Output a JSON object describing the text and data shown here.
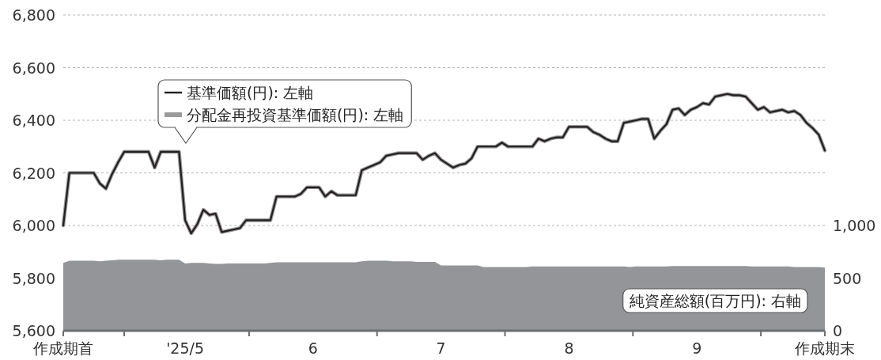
{
  "chart_data": {
    "type": "line",
    "ylim": [
      5600,
      6800
    ],
    "y2lim": [
      0,
      3000
    ],
    "categories": [
      "作成期首",
      null,
      null,
      null,
      null,
      null,
      null,
      null,
      null,
      null,
      null,
      null,
      null,
      null,
      null,
      null,
      null,
      null,
      null,
      null,
      "'25/5",
      null,
      null,
      null,
      null,
      null,
      null,
      null,
      null,
      null,
      null,
      null,
      null,
      null,
      null,
      null,
      null,
      null,
      null,
      null,
      null,
      "6",
      null,
      null,
      null,
      null,
      null,
      null,
      null,
      null,
      null,
      null,
      null,
      null,
      null,
      null,
      null,
      null,
      null,
      null,
      null,
      null,
      "7",
      null,
      null,
      null,
      null,
      null,
      null,
      null,
      null,
      null,
      null,
      null,
      null,
      null,
      null,
      null,
      null,
      null,
      null,
      null,
      null,
      "8",
      null,
      null,
      null,
      null,
      null,
      null,
      null,
      null,
      null,
      null,
      null,
      null,
      null,
      null,
      null,
      null,
      null,
      null,
      null,
      null,
      "9",
      null,
      null,
      null,
      null,
      null,
      null,
      null,
      null,
      null,
      null,
      null,
      null,
      null,
      null,
      null,
      null,
      null,
      null,
      null,
      null,
      "作成期末"
    ],
    "yticks": [
      {
        "value": 5600,
        "label": "5,600"
      },
      {
        "value": 5800,
        "label": "5,800"
      },
      {
        "value": 6000,
        "label": "6,000"
      },
      {
        "value": 6200,
        "label": "6,200"
      },
      {
        "value": 6400,
        "label": "6,400"
      },
      {
        "value": 6600,
        "label": "6,600"
      },
      {
        "value": 6800,
        "label": "6,800"
      }
    ],
    "y2ticks": [
      0,
      500,
      {
        "value": 1000,
        "label": "1,000"
      }
    ],
    "grid": "y",
    "legend": "top left",
    "marker": "none",
    "line_style": "solid",
    "series": [
      {
        "name": "純資産総額(百万円): 右軸",
        "type": "area",
        "axis": "y2",
        "color": "#939598",
        "values": [
          645,
          665,
          665,
          665,
          665,
          665,
          660,
          665,
          670,
          675,
          675,
          675,
          675,
          675,
          675,
          675,
          670,
          675,
          675,
          675,
          640,
          645,
          645,
          645,
          640,
          635,
          635,
          640,
          640,
          640,
          640,
          640,
          640,
          640,
          645,
          650,
          650,
          650,
          650,
          650,
          650,
          650,
          650,
          650,
          650,
          650,
          650,
          650,
          650,
          660,
          665,
          665,
          665,
          665,
          660,
          660,
          660,
          660,
          655,
          655,
          655,
          655,
          620,
          620,
          620,
          620,
          620,
          620,
          620,
          605,
          605,
          605,
          605,
          605,
          605,
          605,
          605,
          610,
          610,
          610,
          610,
          610,
          610,
          610,
          610,
          610,
          610,
          610,
          610,
          610,
          610,
          610,
          610,
          605,
          610,
          610,
          610,
          610,
          610,
          610,
          615,
          615,
          615,
          615,
          615,
          615,
          615,
          615,
          615,
          615,
          615,
          615,
          615,
          610,
          610,
          610,
          610,
          610,
          610,
          610,
          605,
          605,
          605,
          605,
          605,
          600
        ]
      },
      {
        "name": "分配金再投資基準価額(円): 左軸",
        "color": "#9a9a9a",
        "values": [
          6000,
          6200,
          6200,
          6200,
          6200,
          6200,
          6160,
          6140,
          6195,
          6240,
          6280,
          6280,
          6280,
          6280,
          6280,
          6220,
          6280,
          6280,
          6280,
          6280,
          6020,
          5970,
          6005,
          6060,
          6040,
          6045,
          5975,
          5980,
          5985,
          5990,
          6020,
          6020,
          6020,
          6020,
          6020,
          6110,
          6110,
          6110,
          6110,
          6120,
          6145,
          6145,
          6145,
          6110,
          6130,
          6115,
          6115,
          6115,
          6115,
          6210,
          6220,
          6230,
          6240,
          6265,
          6270,
          6275,
          6275,
          6275,
          6275,
          6250,
          6265,
          6275,
          6250,
          6235,
          6220,
          6230,
          6235,
          6255,
          6300,
          6300,
          6300,
          6300,
          6315,
          6300,
          6300,
          6300,
          6300,
          6300,
          6330,
          6320,
          6330,
          6335,
          6335,
          6375,
          6375,
          6375,
          6375,
          6355,
          6345,
          6330,
          6320,
          6320,
          6390,
          6395,
          6400,
          6405,
          6405,
          6330,
          6360,
          6385,
          6440,
          6445,
          6420,
          6440,
          6450,
          6465,
          6460,
          6490,
          6495,
          6500,
          6495,
          6495,
          6490,
          6465,
          6440,
          6450,
          6430,
          6435,
          6440,
          6430,
          6435,
          6420,
          6390,
          6370,
          6345,
          6285
        ]
      },
      {
        "name": "基準価額(円): 左軸",
        "color": "#231f20",
        "values": [
          6000,
          6200,
          6200,
          6200,
          6200,
          6200,
          6160,
          6140,
          6195,
          6240,
          6280,
          6280,
          6280,
          6280,
          6280,
          6220,
          6280,
          6280,
          6280,
          6280,
          6020,
          5970,
          6005,
          6060,
          6040,
          6045,
          5975,
          5980,
          5985,
          5990,
          6020,
          6020,
          6020,
          6020,
          6020,
          6110,
          6110,
          6110,
          6110,
          6120,
          6145,
          6145,
          6145,
          6110,
          6130,
          6115,
          6115,
          6115,
          6115,
          6210,
          6220,
          6230,
          6240,
          6265,
          6270,
          6275,
          6275,
          6275,
          6275,
          6250,
          6265,
          6275,
          6250,
          6235,
          6220,
          6230,
          6235,
          6255,
          6300,
          6300,
          6300,
          6300,
          6315,
          6300,
          6300,
          6300,
          6300,
          6300,
          6330,
          6320,
          6330,
          6335,
          6335,
          6375,
          6375,
          6375,
          6375,
          6355,
          6345,
          6330,
          6320,
          6320,
          6390,
          6395,
          6400,
          6405,
          6405,
          6330,
          6360,
          6385,
          6440,
          6445,
          6420,
          6440,
          6450,
          6465,
          6460,
          6490,
          6495,
          6500,
          6495,
          6495,
          6490,
          6465,
          6440,
          6450,
          6430,
          6435,
          6440,
          6430,
          6435,
          6420,
          6390,
          6370,
          6345,
          6285
        ]
      }
    ]
  }
}
